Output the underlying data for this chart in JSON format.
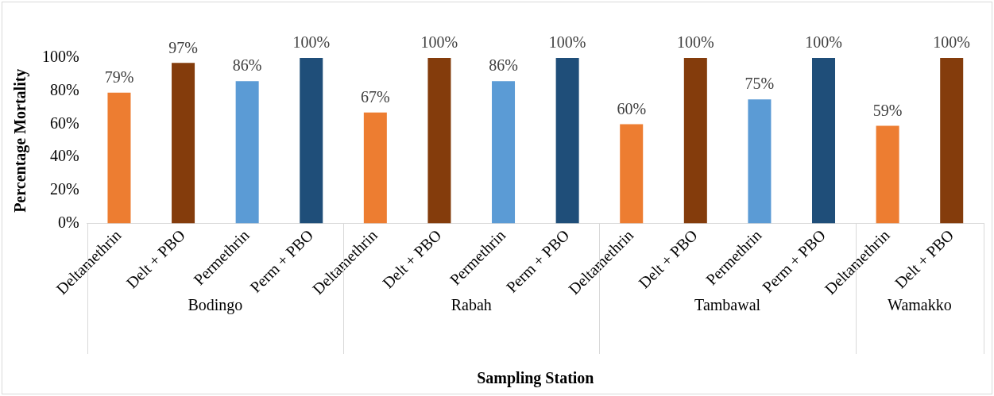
{
  "chart_data": {
    "type": "bar",
    "categories": [
      "Deltamethrin",
      "Delt + PBO",
      "Permethrin",
      "Perm + PBO",
      "Deltamethrin",
      "Delt + PBO",
      "Permethrin",
      "Perm + PBO",
      "Deltamethrin",
      "Delt + PBO",
      "Permethrin",
      "Perm + PBO",
      "Deltamethrin",
      "Delt + PBO"
    ],
    "values": [
      79,
      97,
      86,
      100,
      67,
      100,
      86,
      100,
      60,
      100,
      75,
      100,
      59,
      100
    ],
    "colors": [
      "#ed7d31",
      "#843c0c",
      "#5b9bd5",
      "#1f4e79",
      "#ed7d31",
      "#843c0c",
      "#5b9bd5",
      "#1f4e79",
      "#ed7d31",
      "#843c0c",
      "#5b9bd5",
      "#1f4e79",
      "#ed7d31",
      "#843c0c"
    ],
    "value_labels": [
      "79%",
      "97%",
      "86%",
      "100%",
      "67%",
      "100%",
      "86%",
      "100%",
      "60%",
      "100%",
      "75%",
      "100%",
      "59%",
      "100%"
    ],
    "ylim": [
      0,
      100
    ],
    "yticks": [
      {
        "value": 0,
        "label": "0%"
      },
      {
        "value": 20,
        "label": "20%"
      },
      {
        "value": 40,
        "label": "40%"
      },
      {
        "value": 60,
        "label": "60%"
      },
      {
        "value": 80,
        "label": "80%"
      },
      {
        "value": 100,
        "label": "100%"
      }
    ],
    "xlabel": "Sampling Station",
    "ylabel": "Percentage Mortality",
    "annotations": [
      "Bodingo",
      "Rabah",
      "Tambawal",
      "Wamakko"
    ],
    "grid": false,
    "legend": false
  }
}
